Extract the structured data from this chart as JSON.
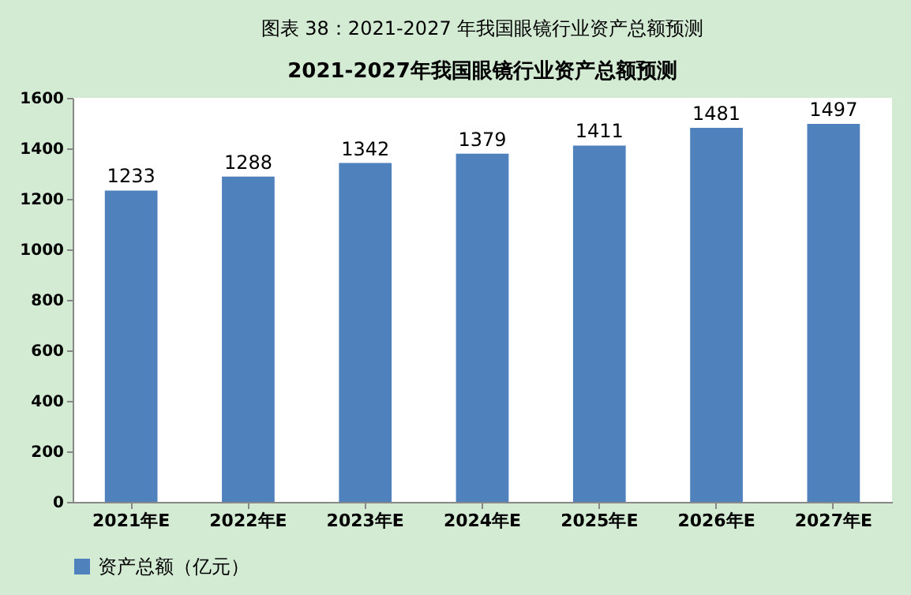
{
  "chart_data": {
    "type": "bar",
    "title": "图表 38：2021-2027 年我国眼镜行业资产总额预测",
    "subtitle": "2021-2027年我国眼镜行业资产总额预测",
    "categories": [
      "2021年E",
      "2022年E",
      "2023年E",
      "2024年E",
      "2025年E",
      "2026年E",
      "2027年E"
    ],
    "series": [
      {
        "name": "资产总额（亿元）",
        "color": "#4f81bd",
        "values": [
          1233,
          1288,
          1342,
          1379,
          1411,
          1481,
          1497
        ]
      }
    ],
    "ylim": [
      0,
      1600
    ],
    "yticks": [
      0,
      200,
      400,
      600,
      800,
      1000,
      1200,
      1400,
      1600
    ],
    "grid": false,
    "legend": "bottom",
    "data_labels": true
  }
}
